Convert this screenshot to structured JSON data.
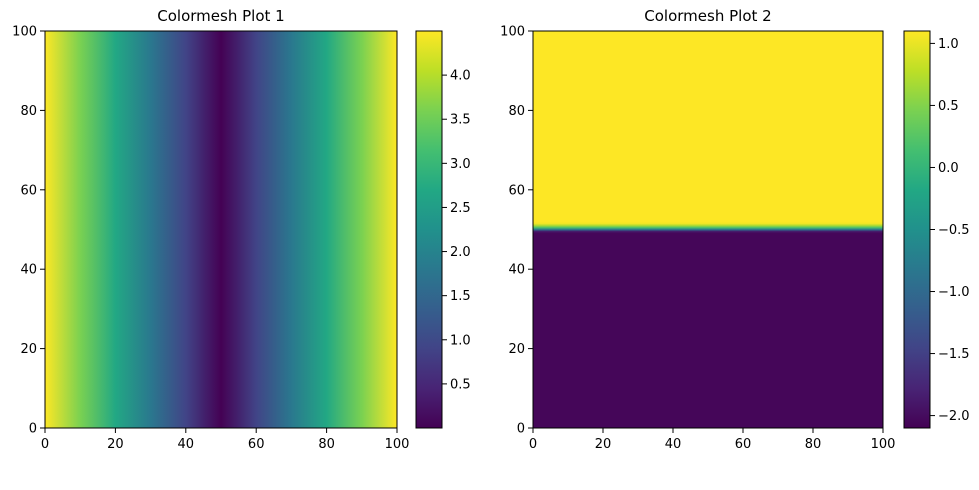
{
  "chart_data": [
    {
      "type": "heatmap",
      "title": "Colormesh Plot 1",
      "xlabel": "",
      "ylabel": "",
      "xlim": [
        0,
        100
      ],
      "ylim": [
        0,
        100
      ],
      "x_ticks": [
        "0",
        "20",
        "40",
        "60",
        "80",
        "100"
      ],
      "y_ticks": [
        "0",
        "20",
        "40",
        "60",
        "80",
        "100"
      ],
      "colormap": "viridis",
      "grid": false,
      "value_range": [
        0,
        4.5
      ],
      "z_profile": "varies along x only: z = 4.5 * |x - 50| / 50",
      "x_samples": [
        0,
        10,
        20,
        30,
        40,
        50,
        60,
        70,
        80,
        90,
        100
      ],
      "z_samples": [
        4.5,
        3.6,
        2.7,
        1.8,
        0.9,
        0.0,
        0.9,
        1.8,
        2.7,
        3.6,
        4.5
      ],
      "colorbar": {
        "min": 0,
        "max": 4.5,
        "ticks": [
          0.5,
          1.0,
          1.5,
          2.0,
          2.5,
          3.0,
          3.5,
          4.0
        ],
        "tick_labels": [
          "0.5",
          "1.0",
          "1.5",
          "2.0",
          "2.5",
          "3.0",
          "3.5",
          "4.0"
        ]
      }
    },
    {
      "type": "heatmap",
      "title": "Colormesh Plot 2",
      "xlabel": "",
      "ylabel": "",
      "xlim": [
        0,
        100
      ],
      "ylim": [
        0,
        100
      ],
      "x_ticks": [
        "0",
        "20",
        "40",
        "60",
        "80",
        "100"
      ],
      "y_ticks": [
        "0",
        "20",
        "40",
        "60",
        "80",
        "100"
      ],
      "colormap": "viridis",
      "grid": false,
      "value_range": [
        -2.1,
        1.1
      ],
      "z_profile": "varies along y only: z ≈ -2.05 for y < 49.5, z ≈ 1.1 for y > 51.5, transition between",
      "y_samples": [
        0,
        49,
        49.5,
        50,
        50.5,
        51,
        51.5,
        52,
        100
      ],
      "z_samples": [
        -2.05,
        -2.05,
        -1.9,
        -0.8,
        0.2,
        0.7,
        1.05,
        1.1,
        1.1
      ],
      "colorbar": {
        "min": -2.1,
        "max": 1.1,
        "ticks": [
          -2.0,
          -1.5,
          -1.0,
          -0.5,
          0.0,
          0.5,
          1.0
        ],
        "tick_labels": [
          "−2.0",
          "−1.5",
          "−1.0",
          "−0.5",
          "0.0",
          "0.5",
          "1.0"
        ]
      }
    }
  ]
}
